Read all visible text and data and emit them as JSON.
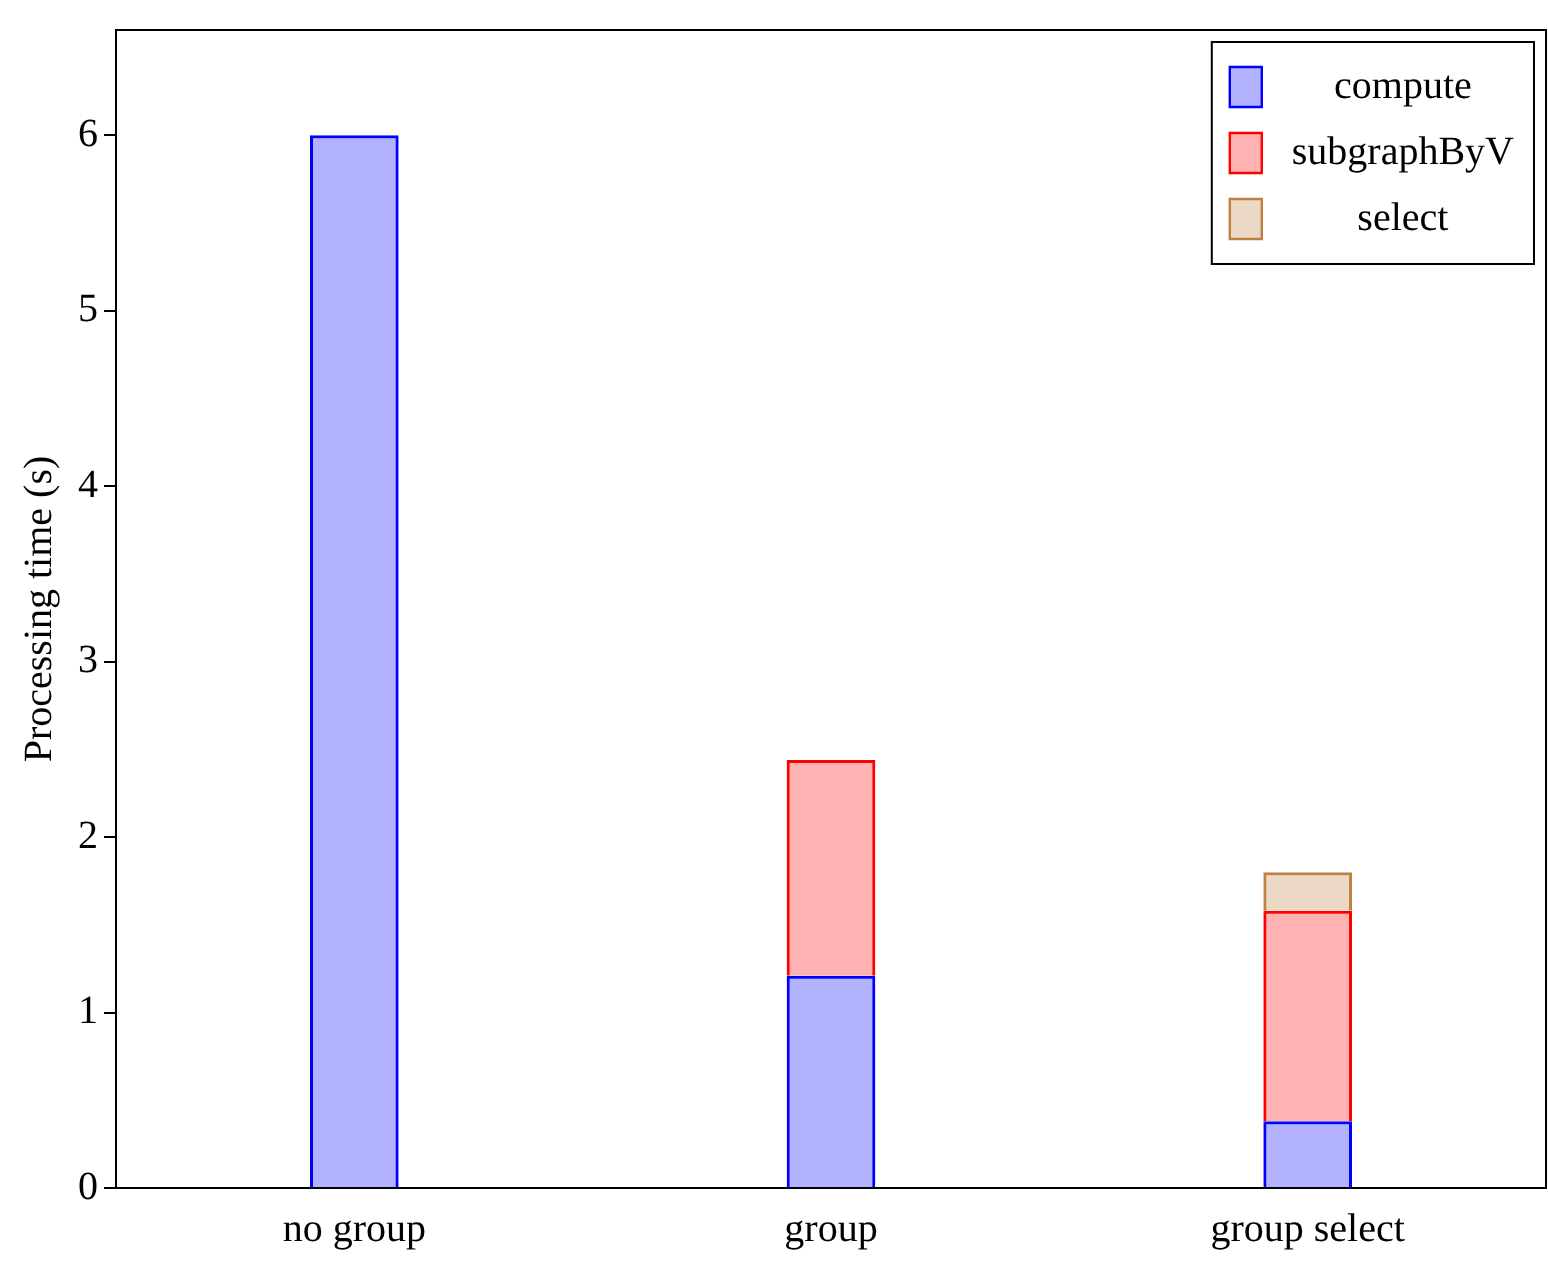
{
  "chart_data": {
    "type": "bar",
    "stacked": true,
    "ylabel": "Processing time (s)",
    "categories": [
      "no group",
      "group",
      "group select"
    ],
    "series": [
      {
        "name": "compute",
        "color": "#0000ff",
        "values": [
          6,
          1.21,
          0.38
        ]
      },
      {
        "name": "subgraphByV",
        "color": "#ff0000",
        "values": [
          null,
          1.23,
          1.2
        ]
      },
      {
        "name": "select",
        "color": "#bf8040",
        "values": [
          null,
          null,
          0.22
        ]
      }
    ],
    "ylim": [
      0,
      6.6
    ],
    "yticks": [
      0,
      1,
      2,
      3,
      4,
      5,
      6
    ],
    "grid": false,
    "legend": "top right"
  }
}
